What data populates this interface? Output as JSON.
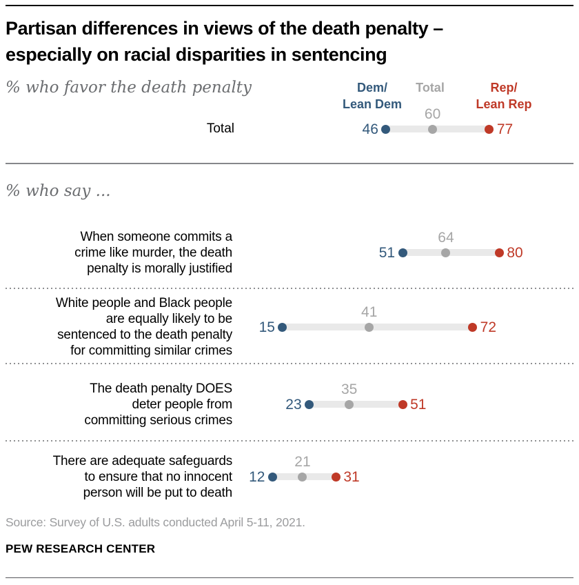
{
  "header": {
    "title_line1": "Partisan differences in views of the death penalty –",
    "title_line2": "especially on racial disparities in sentencing",
    "subtitle": "% who favor the death penalty"
  },
  "legend": {
    "dem": [
      "Dem/",
      "Lean Dem"
    ],
    "total": "Total",
    "rep": [
      "Rep/",
      "Lean Rep"
    ]
  },
  "section_label": "% who say ...",
  "chart_data": {
    "type": "dot-plot",
    "x_range": [
      0,
      100
    ],
    "legend_entries": [
      "Dem/Lean Dem",
      "Total",
      "Rep/Lean Rep"
    ],
    "colors": {
      "dem": "#33597b",
      "total": "#a6a6a6",
      "rep": "#bf3927",
      "bar": "#e9e9e9"
    },
    "total_row": {
      "label": "Total",
      "dem": 46,
      "total": 60,
      "rep": 77
    },
    "rows": [
      {
        "label_lines": [
          "When someone commits a",
          "crime like murder, the death",
          "penalty is morally justified"
        ],
        "dem": 51,
        "total": 64,
        "rep": 80
      },
      {
        "label_lines": [
          "White people and Black people",
          "are equally likely to be",
          "sentenced to the death penalty",
          "for committing similar crimes"
        ],
        "dem": 15,
        "total": 41,
        "rep": 72
      },
      {
        "label_lines": [
          "The death penalty DOES",
          "deter people from",
          "committing serious crimes"
        ],
        "dem": 23,
        "total": 35,
        "rep": 51
      },
      {
        "label_lines": [
          "There are adequate safeguards",
          "to ensure that no innocent",
          "person will be put to death"
        ],
        "dem": 12,
        "total": 21,
        "rep": 31
      }
    ]
  },
  "footer": {
    "source": "Source: Survey of U.S. adults conducted April 5-11, 2021.",
    "brand": "PEW RESEARCH CENTER"
  }
}
